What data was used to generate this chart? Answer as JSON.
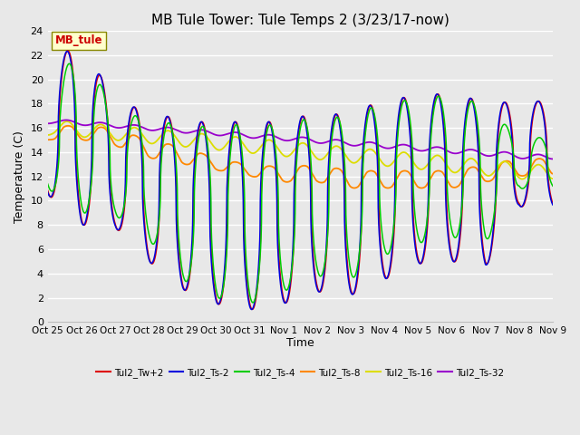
{
  "title": "MB Tule Tower: Tule Temps 2 (3/23/17-now)",
  "xlabel": "Time",
  "ylabel": "Temperature (C)",
  "ylim": [
    0,
    24
  ],
  "yticks": [
    0,
    2,
    4,
    6,
    8,
    10,
    12,
    14,
    16,
    18,
    20,
    22,
    24
  ],
  "xtick_labels": [
    "Oct 25",
    "Oct 26",
    "Oct 27",
    "Oct 28",
    "Oct 29",
    "Oct 30",
    "Oct 31",
    "Nov 1",
    "Nov 2",
    "Nov 3",
    "Nov 4",
    "Nov 5",
    "Nov 6",
    "Nov 7",
    "Nov 8",
    "Nov 9"
  ],
  "line_colors": {
    "Tw2": "#dd0000",
    "Ts2": "#0000dd",
    "Ts4": "#00cc00",
    "Ts8": "#ff8800",
    "Ts16": "#dddd00",
    "Ts32": "#9900cc"
  },
  "legend_labels": [
    "Tul2_Tw+2",
    "Tul2_Ts-2",
    "Tul2_Ts-4",
    "Tul2_Ts-8",
    "Tul2_Ts-16",
    "Tul2_Ts-32"
  ],
  "legend_colors": [
    "#dd0000",
    "#0000dd",
    "#00cc00",
    "#ff8800",
    "#dddd00",
    "#9900cc"
  ],
  "annotation_text": "MB_tule",
  "annotation_color": "#cc0000",
  "annotation_bg": "#ffffcc",
  "annotation_border": "#888800",
  "plot_bg": "#e8e8e8",
  "fig_bg": "#e8e8e8"
}
